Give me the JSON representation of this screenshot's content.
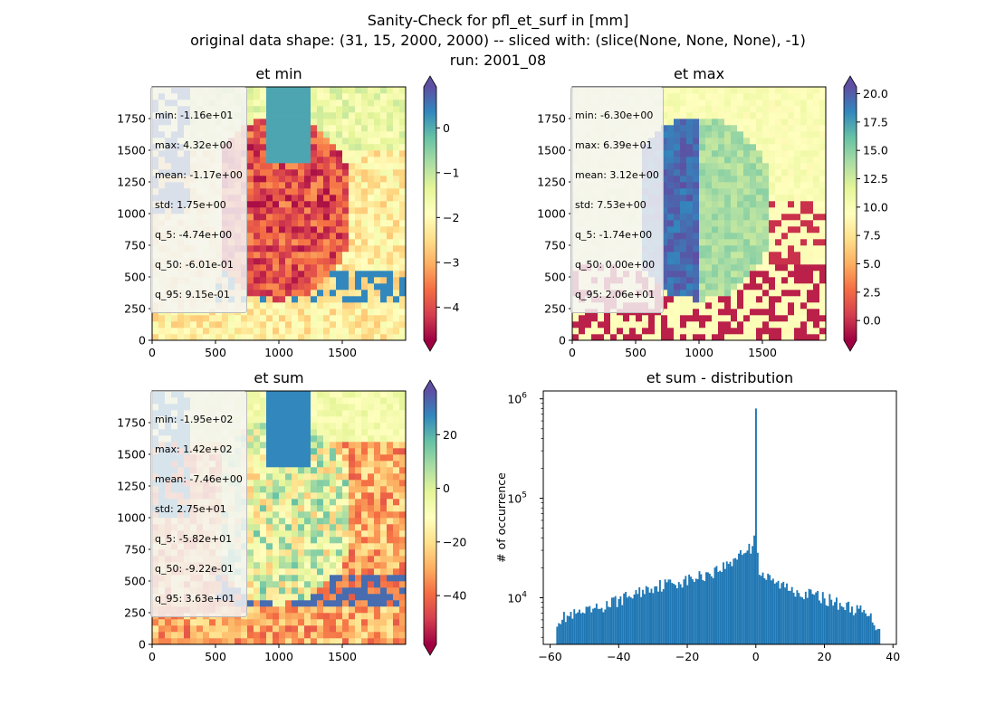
{
  "figure": {
    "suptitle_lines": [
      "Sanity-Check for pfl_et_surf in [mm]",
      "original data shape: (31, 15, 2000, 2000) -- sliced with: (slice(None, None, None), -1)",
      "run: 2001_08"
    ]
  },
  "chart_data": [
    {
      "type": "heatmap",
      "title": "et min",
      "xlabel": "",
      "ylabel": "",
      "xlim": [
        0,
        2000
      ],
      "ylim": [
        0,
        2000
      ],
      "x_ticks": [
        "0",
        "500",
        "1000",
        "1500"
      ],
      "y_ticks": [
        "0",
        "250",
        "500",
        "750",
        "1000",
        "1250",
        "1500",
        "1750"
      ],
      "colorbar": {
        "cmap": "Spectral",
        "range": [
          -4.74,
          0.915
        ],
        "ticks": [
          "0",
          "−1",
          "−2",
          "−3",
          "−4"
        ],
        "tick_values": [
          0,
          -1,
          -2,
          -3,
          -4
        ],
        "extend": "both"
      },
      "stats": [
        "min: -1.16e+01",
        "max: 4.32e+00",
        "mean: -1.17e+00",
        "std: 1.75e+00",
        "q_5: -4.74e+00",
        "q_50: -6.01e-01",
        "q_95: 9.15e-01"
      ]
    },
    {
      "type": "heatmap",
      "title": "et max",
      "xlabel": "",
      "ylabel": "",
      "xlim": [
        0,
        2000
      ],
      "ylim": [
        0,
        2000
      ],
      "x_ticks": [
        "0",
        "500",
        "1000",
        "1500"
      ],
      "y_ticks": [
        "0",
        "250",
        "500",
        "750",
        "1000",
        "1250",
        "1500",
        "1750"
      ],
      "colorbar": {
        "cmap": "Spectral",
        "range": [
          -1.74,
          20.6
        ],
        "ticks": [
          "20.0",
          "17.5",
          "15.0",
          "12.5",
          "10.0",
          "7.5",
          "5.0",
          "2.5",
          "0.0"
        ],
        "tick_values": [
          20,
          17.5,
          15,
          12.5,
          10,
          7.5,
          5,
          2.5,
          0
        ],
        "extend": "both"
      },
      "stats": [
        "min: -6.30e+00",
        "max: 6.39e+01",
        "mean: 3.12e+00",
        "std: 7.53e+00",
        "q_5: -1.74e+00",
        "q_50: 0.00e+00",
        "q_95: 2.06e+01"
      ]
    },
    {
      "type": "heatmap",
      "title": "et sum",
      "xlabel": "",
      "ylabel": "",
      "xlim": [
        0,
        2000
      ],
      "ylim": [
        0,
        2000
      ],
      "x_ticks": [
        "0",
        "500",
        "1000",
        "1500"
      ],
      "y_ticks": [
        "0",
        "250",
        "500",
        "750",
        "1000",
        "1250",
        "1500",
        "1750"
      ],
      "colorbar": {
        "cmap": "Spectral",
        "range": [
          -58.2,
          36.3
        ],
        "ticks": [
          "20",
          "0",
          "−20",
          "−40"
        ],
        "tick_values": [
          20,
          0,
          -20,
          -40
        ],
        "extend": "both"
      },
      "stats": [
        "min: -1.95e+02",
        "max: 1.42e+02",
        "mean: -7.46e+00",
        "std: 2.75e+01",
        "q_5: -5.82e+01",
        "q_50: -9.22e-01",
        "q_95: 3.63e+01"
      ]
    },
    {
      "type": "bar",
      "subtype": "histogram",
      "title": "et sum - distribution",
      "xlabel": "",
      "ylabel": "# of occurrence",
      "xlim": [
        -62,
        41
      ],
      "ylim": [
        3400,
        1200000
      ],
      "yscale": "log",
      "x_ticks": [
        "−60",
        "−40",
        "−20",
        "0",
        "20",
        "40"
      ],
      "x_tick_values": [
        -60,
        -40,
        -20,
        0,
        20,
        40
      ],
      "y_ticks": [
        "10^4",
        "10^5",
        "10^6"
      ],
      "y_tick_values": [
        10000,
        100000,
        1000000
      ],
      "bins": {
        "start": -58.2,
        "end": 36.3,
        "count": 189
      },
      "envelope": {
        "x": [
          -58,
          -55,
          -50,
          -45,
          -40,
          -35,
          -30,
          -25,
          -20,
          -15,
          -10,
          -7,
          -5,
          -3,
          -1,
          -0.3,
          0,
          0.3,
          1,
          3,
          5,
          10,
          15,
          20,
          25,
          30,
          33,
          35,
          36.3
        ],
        "y": [
          6000,
          6500,
          7000,
          8000,
          9500,
          11000,
          13000,
          14000,
          15000,
          17000,
          20000,
          23000,
          28000,
          30000,
          32000,
          50000,
          800000,
          40000,
          18000,
          16000,
          14500,
          12500,
          11000,
          10000,
          8500,
          7500,
          6500,
          5500,
          5000
        ]
      },
      "color": "#1f77b4"
    }
  ]
}
